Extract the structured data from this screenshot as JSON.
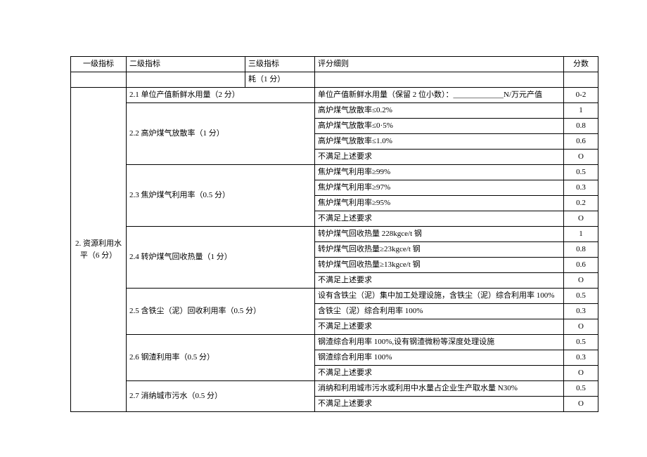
{
  "header": {
    "col1": "一级指标",
    "col2": "二级指标",
    "col3": "三级指标",
    "col4": "评分细则",
    "col5": "分数"
  },
  "preRow": {
    "c3": "耗（1 分）",
    "c4": "",
    "c5": ""
  },
  "level1": "2. 资源利用水平（6 分）",
  "rows": [
    {
      "l2": "2.1 单位产值新鲜水用量（2 分）",
      "l2span": 1,
      "c4": "单位产值新鲜水用量（保留 2 位小数）：_____________N/万元产值",
      "c5": "0-2"
    },
    {
      "l2": "2.2 高炉煤气放散率（1 分）",
      "l2span": 4,
      "c4": "高炉煤气放散率≤0.2%",
      "c5": "1"
    },
    {
      "c4": "高炉煤气放散率≤0·5%",
      "c5": "0.8"
    },
    {
      "c4": "高炉煤气放散率≤1.0%",
      "c5": "0.6"
    },
    {
      "c4": "不满足上述要求",
      "c5": "O"
    },
    {
      "l2": "2.3 焦炉煤气利用率（0.5 分）",
      "l2span": 4,
      "c4": "焦炉煤气利用率≥99%",
      "c5": "0.5"
    },
    {
      "c4": "焦炉煤气利用率≥97%",
      "c5": "0.3"
    },
    {
      "c4": "焦炉煤气利用率≥95%",
      "c5": "0.2"
    },
    {
      "c4": "不满足上述要求",
      "c5": "O"
    },
    {
      "l2": "2.4 转炉煤气回收热量（1 分）",
      "l2span": 4,
      "c4": "转炉煤气回收热量 228kgce/t 钢",
      "c5": "1"
    },
    {
      "c4": "转炉煤气回收热量≥23kgce/t 钢",
      "c5": "0.8"
    },
    {
      "c4": "转炉煤气回收热量≥13kgce/t 钢",
      "c5": "0.6"
    },
    {
      "c4": "不满足上述要求",
      "c5": "O"
    },
    {
      "l2": "2.5 含铁尘（泥）回收利用率（0.5 分）",
      "l2span": 3,
      "c4": "设有含铁尘（泥）集中加工处理设施，含铁尘（泥）综合利用率 100%",
      "c5": "0.5"
    },
    {
      "c4": "含铁尘（泥）综合利用率 100%",
      "c5": "0.3"
    },
    {
      "c4": "不满足上述要求",
      "c5": "O"
    },
    {
      "l2": "2.6 钢渣利用率（0.5 分）",
      "l2span": 3,
      "c4": "钢渣综合利用率 100%,设有钢渣微粉等深度处理设施",
      "c5": "0.5"
    },
    {
      "c4": "钢渣综合利用率 100%",
      "c5": "0.3"
    },
    {
      "c4": "不满足上述要求",
      "c5": "O"
    },
    {
      "l2": "2.7 消纳城市污水（0.5 分）",
      "l2span": 2,
      "c4": "消纳和利用城市污水或利用中水量占企业生产取水量 N30%",
      "c5": "0.5"
    },
    {
      "c4": "不满足上述要求",
      "c5": "O"
    }
  ]
}
